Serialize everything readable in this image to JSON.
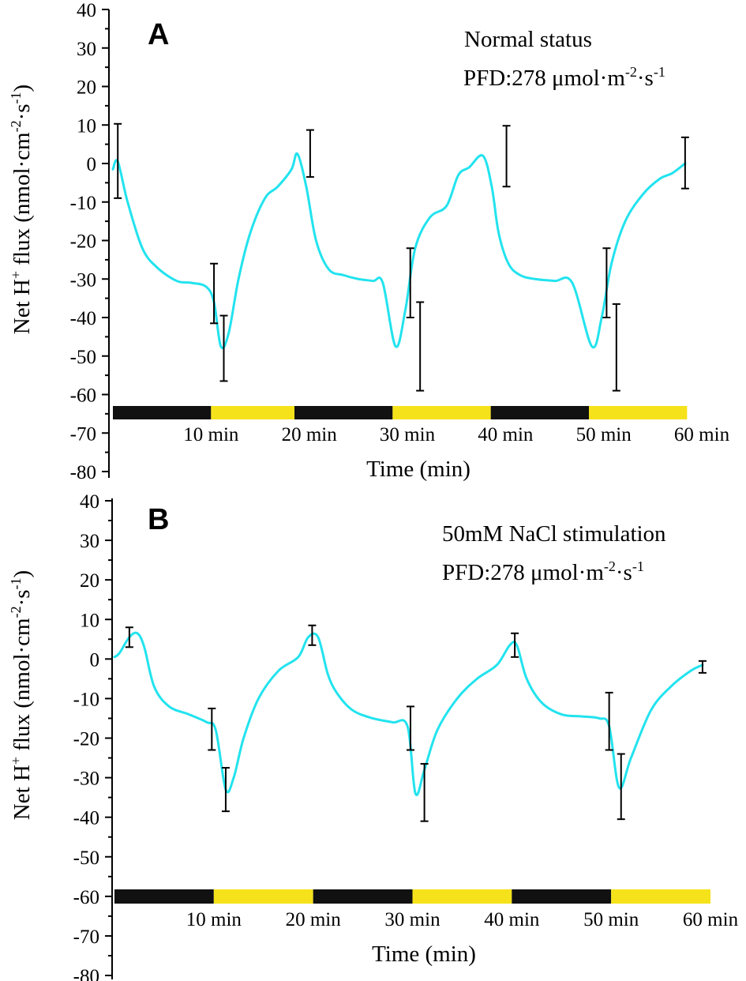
{
  "chart_data": [
    {
      "type": "line",
      "panel_label": "A",
      "annotation_line1": "Normal status",
      "annotation_line2": {
        "base": "PFD:278 μmol·m",
        "sup1": "-2",
        "mid": "·s",
        "sup2": "-1"
      },
      "ylabel": {
        "part1": "Net H",
        "sup1": "+",
        "part2": " flux (nmol·cm",
        "sup2": "-2",
        "part3": "·s",
        "sup3": "-1",
        "part4": ")"
      },
      "xlabel": "Time (min)",
      "ylim": [
        -80,
        40
      ],
      "xlim": [
        0,
        60
      ],
      "yticks": [
        "40",
        "30",
        "20",
        "10",
        "0",
        "-10",
        "-20",
        "-30",
        "-40",
        "-50",
        "-60",
        "-70",
        "-80"
      ],
      "xticks": [
        "10 min",
        "20 min",
        "30 min",
        "40 min",
        "50 min",
        "60 min"
      ],
      "light_bar": [
        {
          "start": 0,
          "end": 10,
          "state": "dark"
        },
        {
          "start": 10,
          "end": 18.5,
          "state": "light"
        },
        {
          "start": 18.5,
          "end": 28.5,
          "state": "dark"
        },
        {
          "start": 28.5,
          "end": 38.5,
          "state": "light"
        },
        {
          "start": 38.5,
          "end": 48.5,
          "state": "dark"
        },
        {
          "start": 48.5,
          "end": 58.5,
          "state": "light"
        }
      ],
      "series": [
        {
          "name": "Net H+ flux",
          "color": "#22e3ee",
          "x": [
            0,
            0.5,
            1.5,
            3,
            4.5,
            6.5,
            8,
            9.5,
            10.3,
            11,
            11.8,
            12.8,
            14,
            15.5,
            16.8,
            18.2,
            18.8,
            19.7,
            20.7,
            22,
            23.5,
            25,
            26.5,
            27.5,
            28.8,
            29.8,
            30.8,
            32.3,
            34,
            35.2,
            36.3,
            37.7,
            38.6,
            39.3,
            40.3,
            41.5,
            43,
            45,
            46.8,
            48.8,
            49.8,
            50.8,
            52.2,
            54,
            55.7,
            57,
            58.3
          ],
          "y": [
            -1.5,
            0.5,
            -10,
            -22,
            -27,
            -30.5,
            -31,
            -32,
            -36,
            -47.5,
            -44,
            -30,
            -18,
            -9,
            -6,
            -1.5,
            2.5,
            -6,
            -20,
            -27.5,
            -29,
            -30,
            -30.5,
            -31,
            -47.5,
            -38,
            -22,
            -14,
            -11,
            -3,
            -1,
            2,
            -6,
            -18,
            -26,
            -29,
            -30,
            -30.5,
            -31,
            -47.5,
            -40,
            -26,
            -15,
            -8,
            -4,
            -2.5,
            0
          ],
          "error_bars": [
            {
              "x": 0.5,
              "y": 0.5,
              "high": 10.3,
              "low": -9
            },
            {
              "x": 10.3,
              "y": -33.5,
              "high": -26,
              "low": -41.5
            },
            {
              "x": 11.3,
              "y": -48,
              "high": -39.5,
              "low": -56.5
            },
            {
              "x": 20.1,
              "y": 2.5,
              "high": 8.7,
              "low": -3.5
            },
            {
              "x": 30.3,
              "y": -31,
              "high": -22,
              "low": -40
            },
            {
              "x": 31.3,
              "y": -47.5,
              "high": -36,
              "low": -59
            },
            {
              "x": 40.1,
              "y": 2,
              "high": 9.8,
              "low": -6
            },
            {
              "x": 50.3,
              "y": -31,
              "high": -22,
              "low": -40
            },
            {
              "x": 51.3,
              "y": -47.5,
              "high": -36.5,
              "low": -59
            },
            {
              "x": 58.3,
              "y": 0,
              "high": 6.8,
              "low": -6.5
            }
          ]
        }
      ]
    },
    {
      "type": "line",
      "panel_label": "B",
      "annotation_line1": "50mM NaCl stimulation",
      "annotation_line2": {
        "base": "PFD:278 μmol·m",
        "sup1": "-2",
        "mid": "·s",
        "sup2": "-1"
      },
      "ylabel": {
        "part1": "Net H",
        "sup1": "+",
        "part2": " flux (nmol·cm",
        "sup2": "-2",
        "part3": "·s",
        "sup3": "-1",
        "part4": ")"
      },
      "xlabel": "Time (min)",
      "ylim": [
        -80,
        40
      ],
      "xlim": [
        0,
        60
      ],
      "yticks": [
        "40",
        "30",
        "20",
        "10",
        "0",
        "-10",
        "-20",
        "-30",
        "-40",
        "-50",
        "-60",
        "-70",
        "-80"
      ],
      "xticks": [
        "10 min",
        "20 min",
        "30 min",
        "40 min",
        "50 min",
        "60 min"
      ],
      "light_bar": [
        {
          "start": 0,
          "end": 10,
          "state": "dark"
        },
        {
          "start": 10,
          "end": 20,
          "state": "light"
        },
        {
          "start": 20,
          "end": 30,
          "state": "dark"
        },
        {
          "start": 30,
          "end": 40,
          "state": "light"
        },
        {
          "start": 40,
          "end": 50,
          "state": "dark"
        },
        {
          "start": 50,
          "end": 60,
          "state": "light"
        }
      ],
      "series": [
        {
          "name": "Net H+ flux",
          "color": "#22e3ee",
          "x": [
            0,
            0.5,
            1.5,
            2.3,
            3,
            4,
            5.5,
            7.5,
            9.3,
            10.2,
            11.2,
            12,
            13,
            14.5,
            16.5,
            18.5,
            19.5,
            20.5,
            21.5,
            22.5,
            24,
            26,
            28,
            29.5,
            30.3,
            31.2,
            32.5,
            34.5,
            36.5,
            38.5,
            39.8,
            40.5,
            41.5,
            43,
            45,
            47,
            48.8,
            49.8,
            50.8,
            52,
            54,
            56,
            58,
            59.2
          ],
          "y": [
            0.5,
            1.5,
            5.5,
            6.5,
            3,
            -7,
            -12,
            -14,
            -16,
            -18,
            -33,
            -30,
            -20,
            -10,
            -3,
            0.5,
            5.5,
            5.5,
            -4,
            -9,
            -13,
            -15,
            -16,
            -17,
            -34,
            -28,
            -18,
            -10,
            -5,
            -1.5,
            3.5,
            3.5,
            -5,
            -11,
            -14,
            -14.5,
            -15,
            -17,
            -32.5,
            -25,
            -13,
            -7,
            -3,
            -1.5
          ],
          "error_bars": [
            {
              "x": 1.5,
              "y": 5.5,
              "high": 8,
              "low": 3
            },
            {
              "x": 9.8,
              "y": -18,
              "high": -12.5,
              "low": -23
            },
            {
              "x": 11.2,
              "y": -33,
              "high": -27.5,
              "low": -38.5
            },
            {
              "x": 19.9,
              "y": 6,
              "high": 8.5,
              "low": 3.5
            },
            {
              "x": 29.8,
              "y": -17,
              "high": -12,
              "low": -23
            },
            {
              "x": 31.2,
              "y": -34,
              "high": -26.5,
              "low": -41
            },
            {
              "x": 40.3,
              "y": 3.5,
              "high": 6.5,
              "low": 0.5
            },
            {
              "x": 49.8,
              "y": -16,
              "high": -8.5,
              "low": -23
            },
            {
              "x": 51,
              "y": -32.5,
              "high": -24,
              "low": -40.5
            },
            {
              "x": 59.2,
              "y": -1.5,
              "high": -0.5,
              "low": -3.5
            }
          ]
        }
      ]
    }
  ]
}
